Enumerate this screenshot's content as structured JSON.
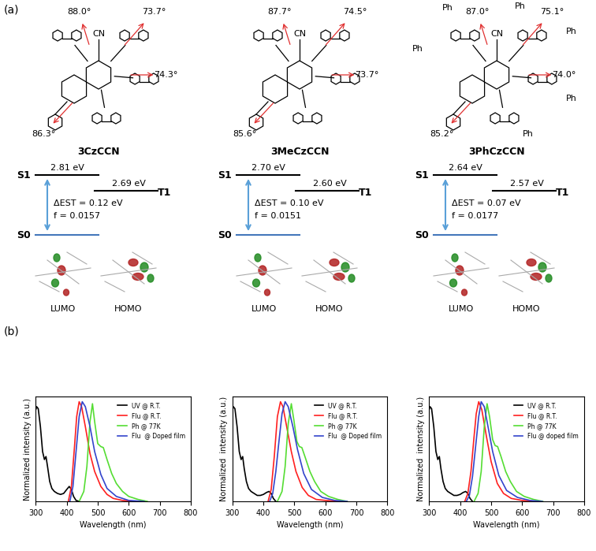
{
  "panel_a": {
    "label": "(a)",
    "molecules": [
      {
        "name": "3CzCCN",
        "cn": "CN",
        "angles": [
          "88.0°",
          "73.7°",
          "74.3°",
          "86.3°"
        ],
        "substituent_labels": [],
        "state_labels": [
          "S1",
          "T1",
          "S0"
        ],
        "S1": "2.81 eV",
        "T1": "2.69 eV",
        "delta_est": "ΔEST = 0.12 eV",
        "f": "f = 0.0157",
        "orbitals": [
          "LUMO",
          "HOMO"
        ]
      },
      {
        "name": "3MeCzCCN",
        "cn": "CN",
        "angles": [
          "87.7°",
          "74.5°",
          "73.7°",
          "85.6°"
        ],
        "substituent_labels": [],
        "state_labels": [
          "S1",
          "T1",
          "S0"
        ],
        "S1": "2.70 eV",
        "T1": "2.60 eV",
        "delta_est": "ΔEST = 0.10 eV",
        "f": "f = 0.0151",
        "orbitals": [
          "LUMO",
          "HOMO"
        ]
      },
      {
        "name": "3PhCzCCN",
        "cn": "CN",
        "angles": [
          "87.0°",
          "75.1°",
          "74.0°",
          "85.2°"
        ],
        "substituent_labels": [
          "Ph",
          "Ph",
          "Ph",
          "Ph",
          "Ph",
          "Ph"
        ],
        "state_labels": [
          "S1",
          "T1",
          "S0"
        ],
        "S1": "2.64 eV",
        "T1": "2.57 eV",
        "delta_est": "ΔEST = 0.07 eV",
        "f": "f = 0.0177",
        "orbitals": [
          "LUMO",
          "HOMO"
        ]
      }
    ]
  },
  "panel_b": {
    "label": "(b)"
  },
  "chart_data": [
    {
      "type": "line",
      "x_label": "Wavelength (nm)",
      "y_label": "Normalized intensity (a.u.)",
      "xlim": [
        300,
        800
      ],
      "xticks": [
        300,
        400,
        500,
        600,
        700,
        800
      ],
      "ylim": [
        0,
        1.05
      ],
      "yticks": [],
      "tick_labels": "x",
      "legend": "upper right",
      "series": [
        {
          "name": "UV @ R.T.",
          "color": "#000000",
          "x": [
            300,
            303,
            308,
            315,
            322,
            328,
            333,
            338,
            345,
            352,
            360,
            370,
            380,
            390,
            400,
            408,
            415,
            422,
            430,
            440
          ],
          "values": [
            0.92,
            0.95,
            0.93,
            0.75,
            0.5,
            0.42,
            0.45,
            0.35,
            0.2,
            0.13,
            0.1,
            0.08,
            0.07,
            0.08,
            0.12,
            0.15,
            0.12,
            0.05,
            0.01,
            0
          ]
        },
        {
          "name": "Flu @ R.T.",
          "color": "#ff2020",
          "x": [
            405,
            415,
            425,
            432,
            440,
            448,
            460,
            475,
            490,
            510,
            530,
            550,
            580,
            620
          ],
          "values": [
            0,
            0.15,
            0.55,
            0.85,
            1.0,
            0.95,
            0.75,
            0.48,
            0.3,
            0.15,
            0.07,
            0.03,
            0.01,
            0
          ]
        },
        {
          "name": "Ph @ 77K",
          "color": "#55dd33",
          "x": [
            440,
            455,
            465,
            475,
            483,
            490,
            500,
            510,
            518,
            530,
            545,
            560,
            580,
            600,
            630,
            660
          ],
          "values": [
            0,
            0.1,
            0.35,
            0.8,
            0.98,
            0.8,
            0.58,
            0.55,
            0.54,
            0.42,
            0.28,
            0.18,
            0.1,
            0.05,
            0.02,
            0
          ]
        },
        {
          "name": "Flu  @ Doped film",
          "color": "#3344cc",
          "x": [
            410,
            420,
            430,
            440,
            450,
            460,
            475,
            490,
            510,
            530,
            560,
            600,
            650
          ],
          "values": [
            0,
            0.15,
            0.5,
            0.85,
            1.0,
            0.95,
            0.75,
            0.5,
            0.27,
            0.13,
            0.05,
            0.01,
            0
          ]
        }
      ]
    },
    {
      "type": "line",
      "x_label": "Wavelength (nm)",
      "y_label": "Normalized  intensity (a.u.)",
      "xlim": [
        300,
        800
      ],
      "xticks": [
        300,
        400,
        500,
        600,
        700,
        800
      ],
      "ylim": [
        0,
        1.05
      ],
      "yticks": [],
      "tick_labels": "x",
      "legend": "upper right",
      "series": [
        {
          "name": "UV @ R.T.",
          "color": "#000000",
          "x": [
            300,
            303,
            308,
            315,
            322,
            328,
            333,
            338,
            345,
            352,
            360,
            370,
            380,
            390,
            400,
            410,
            418,
            425,
            432,
            440
          ],
          "values": [
            0.92,
            0.95,
            0.93,
            0.75,
            0.5,
            0.42,
            0.45,
            0.33,
            0.2,
            0.13,
            0.1,
            0.08,
            0.06,
            0.06,
            0.07,
            0.09,
            0.1,
            0.08,
            0.03,
            0
          ]
        },
        {
          "name": "Flu @ R.T.",
          "color": "#ff2020",
          "x": [
            415,
            425,
            435,
            445,
            455,
            463,
            475,
            490,
            505,
            525,
            545,
            570,
            600,
            640
          ],
          "values": [
            0,
            0.12,
            0.45,
            0.85,
            1.0,
            0.95,
            0.75,
            0.5,
            0.3,
            0.14,
            0.06,
            0.02,
            0.01,
            0
          ]
        },
        {
          "name": "Ph @ 77K",
          "color": "#55dd33",
          "x": [
            445,
            460,
            470,
            480,
            490,
            498,
            508,
            516,
            524,
            535,
            550,
            565,
            585,
            610,
            640,
            670
          ],
          "values": [
            0,
            0.1,
            0.35,
            0.78,
            0.98,
            0.82,
            0.6,
            0.55,
            0.54,
            0.44,
            0.3,
            0.2,
            0.1,
            0.05,
            0.02,
            0
          ]
        },
        {
          "name": "Flu  @ Doped film",
          "color": "#3344cc",
          "x": [
            420,
            430,
            440,
            450,
            460,
            470,
            480,
            495,
            510,
            530,
            555,
            590,
            630,
            670
          ],
          "values": [
            0,
            0.08,
            0.3,
            0.6,
            0.88,
            1.0,
            0.95,
            0.75,
            0.52,
            0.28,
            0.12,
            0.04,
            0.01,
            0
          ]
        }
      ]
    },
    {
      "type": "line",
      "x_label": "Wavelength (nm)",
      "y_label": "Normalized  intensity (a.u.)",
      "xlim": [
        300,
        800
      ],
      "xticks": [
        300,
        400,
        500,
        600,
        700,
        800
      ],
      "ylim": [
        0,
        1.05
      ],
      "yticks": [],
      "tick_labels": "x",
      "legend": "upper right",
      "series": [
        {
          "name": "UV @ R.T.",
          "color": "#000000",
          "x": [
            300,
            303,
            308,
            315,
            322,
            328,
            333,
            338,
            345,
            352,
            360,
            370,
            380,
            390,
            400,
            410,
            418,
            425,
            432,
            440
          ],
          "values": [
            0.92,
            0.95,
            0.93,
            0.75,
            0.5,
            0.42,
            0.45,
            0.33,
            0.2,
            0.13,
            0.1,
            0.08,
            0.06,
            0.06,
            0.07,
            0.09,
            0.1,
            0.08,
            0.03,
            0
          ]
        },
        {
          "name": "Flu @ R.T.",
          "color": "#ff2020",
          "x": [
            415,
            425,
            435,
            445,
            452,
            460,
            470,
            485,
            500,
            520,
            540,
            565,
            600,
            640
          ],
          "values": [
            0,
            0.08,
            0.3,
            0.65,
            0.88,
            1.0,
            0.92,
            0.65,
            0.4,
            0.18,
            0.08,
            0.03,
            0.01,
            0
          ]
        },
        {
          "name": "Ph @ 77K",
          "color": "#55dd33",
          "x": [
            445,
            458,
            468,
            478,
            487,
            495,
            505,
            513,
            521,
            532,
            547,
            562,
            582,
            607,
            637,
            667
          ],
          "values": [
            0,
            0.08,
            0.3,
            0.75,
            0.98,
            0.85,
            0.62,
            0.56,
            0.55,
            0.45,
            0.3,
            0.2,
            0.1,
            0.05,
            0.02,
            0
          ]
        },
        {
          "name": "Flu @ doped film",
          "color": "#3344cc",
          "x": [
            420,
            430,
            440,
            450,
            460,
            468,
            478,
            490,
            505,
            525,
            550,
            585,
            625,
            665
          ],
          "values": [
            0,
            0.06,
            0.25,
            0.55,
            0.85,
            1.0,
            0.95,
            0.75,
            0.5,
            0.26,
            0.11,
            0.04,
            0.01,
            0
          ]
        }
      ]
    }
  ]
}
